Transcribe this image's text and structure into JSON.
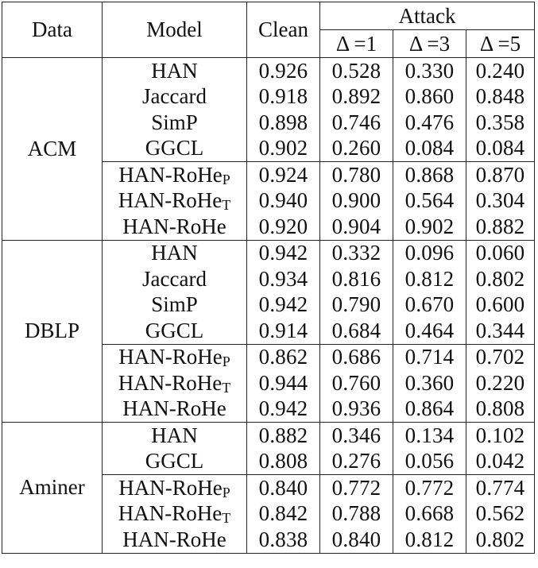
{
  "header": {
    "data": "Data",
    "model": "Model",
    "clean": "Clean",
    "attack": "Attack",
    "delta1": "Δ =1",
    "delta3": "Δ =3",
    "delta5": "Δ =5"
  },
  "groups": [
    {
      "name": "ACM",
      "rows": [
        {
          "model": "HAN",
          "sub": "",
          "clean": "0.926",
          "a1": "0.528",
          "a3": "0.330",
          "a5": "0.240"
        },
        {
          "model": "Jaccard",
          "sub": "",
          "clean": "0.918",
          "a1": "0.892",
          "a3": "0.860",
          "a5": "0.848"
        },
        {
          "model": "SimP",
          "sub": "",
          "clean": "0.898",
          "a1": "0.746",
          "a3": "0.476",
          "a5": "0.358"
        },
        {
          "model": "GGCL",
          "sub": "",
          "clean": "0.902",
          "a1": "0.260",
          "a3": "0.084",
          "a5": "0.084"
        },
        {
          "model": "HAN-RoHe",
          "sub": "P",
          "clean": "0.924",
          "a1": "0.780",
          "a3": "0.868",
          "a5": "0.870"
        },
        {
          "model": "HAN-RoHe",
          "sub": "T",
          "clean": "0.940",
          "a1": "0.900",
          "a3": "0.564",
          "a5": "0.304"
        },
        {
          "model": "HAN-RoHe",
          "sub": "",
          "clean": "0.920",
          "a1": "0.904",
          "a3": "0.902",
          "a5": "0.882"
        }
      ]
    },
    {
      "name": "DBLP",
      "rows": [
        {
          "model": "HAN",
          "sub": "",
          "clean": "0.942",
          "a1": "0.332",
          "a3": "0.096",
          "a5": "0.060"
        },
        {
          "model": "Jaccard",
          "sub": "",
          "clean": "0.934",
          "a1": "0.816",
          "a3": "0.812",
          "a5": "0.802"
        },
        {
          "model": "SimP",
          "sub": "",
          "clean": "0.942",
          "a1": "0.790",
          "a3": "0.670",
          "a5": "0.600"
        },
        {
          "model": "GGCL",
          "sub": "",
          "clean": "0.914",
          "a1": "0.684",
          "a3": "0.464",
          "a5": "0.344"
        },
        {
          "model": "HAN-RoHe",
          "sub": "P",
          "clean": "0.862",
          "a1": "0.686",
          "a3": "0.714",
          "a5": "0.702"
        },
        {
          "model": "HAN-RoHe",
          "sub": "T",
          "clean": "0.944",
          "a1": "0.760",
          "a3": "0.360",
          "a5": "0.220"
        },
        {
          "model": "HAN-RoHe",
          "sub": "",
          "clean": "0.942",
          "a1": "0.936",
          "a3": "0.864",
          "a5": "0.808"
        }
      ]
    },
    {
      "name": "Aminer",
      "rows": [
        {
          "model": "HAN",
          "sub": "",
          "clean": "0.882",
          "a1": "0.346",
          "a3": "0.134",
          "a5": "0.102"
        },
        {
          "model": "GGCL",
          "sub": "",
          "clean": "0.808",
          "a1": "0.276",
          "a3": "0.056",
          "a5": "0.042"
        },
        {
          "model": "HAN-RoHe",
          "sub": "P",
          "clean": "0.840",
          "a1": "0.772",
          "a3": "0.772",
          "a5": "0.774"
        },
        {
          "model": "HAN-RoHe",
          "sub": "T",
          "clean": "0.842",
          "a1": "0.788",
          "a3": "0.668",
          "a5": "0.562"
        },
        {
          "model": "HAN-RoHe",
          "sub": "",
          "clean": "0.838",
          "a1": "0.840",
          "a3": "0.812",
          "a5": "0.802"
        }
      ]
    }
  ]
}
